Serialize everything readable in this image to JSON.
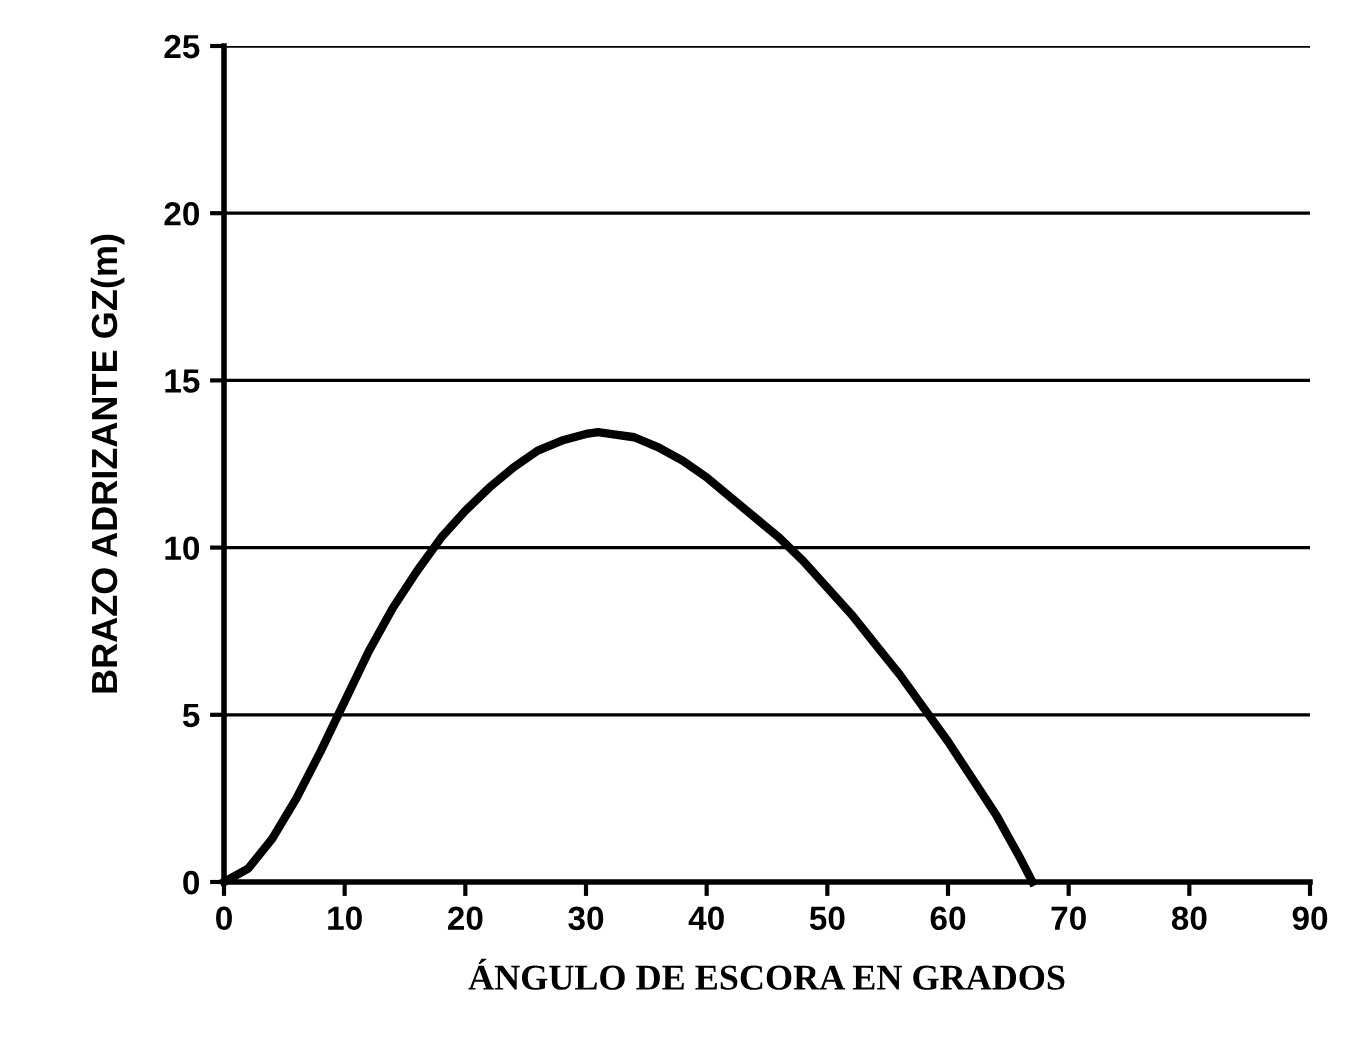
{
  "chart_data": {
    "type": "line",
    "xlabel": "ÁNGULO DE ESCORA EN GRADOS",
    "ylabel": "BRAZO ADRIZANTE GZ(m)",
    "x": [
      0,
      2,
      4,
      6,
      8,
      10,
      12,
      14,
      16,
      18,
      20,
      22,
      24,
      26,
      28,
      30,
      31,
      32,
      34,
      36,
      38,
      40,
      42,
      44,
      46,
      48,
      50,
      52,
      54,
      56,
      58,
      60,
      62,
      64,
      66,
      67
    ],
    "series": [
      {
        "color": "#000000",
        "values": [
          0,
          0.4,
          1.3,
          2.5,
          3.9,
          5.4,
          6.9,
          8.2,
          9.3,
          10.3,
          11.1,
          11.8,
          12.4,
          12.9,
          13.2,
          13.4,
          13.45,
          13.4,
          13.3,
          13.0,
          12.6,
          12.1,
          11.5,
          10.9,
          10.3,
          9.6,
          8.8,
          8.0,
          7.1,
          6.2,
          5.2,
          4.2,
          3.1,
          2.0,
          0.7,
          0
        ]
      }
    ],
    "xlim": [
      0,
      90
    ],
    "xticks": [
      0,
      10,
      20,
      30,
      40,
      50,
      60,
      70,
      80,
      90
    ],
    "ylim": [
      0,
      25
    ],
    "yticks": [
      0,
      5,
      10,
      15,
      20,
      25
    ],
    "grid": "y",
    "legend": false,
    "marker": "none",
    "line_style": "solid"
  }
}
